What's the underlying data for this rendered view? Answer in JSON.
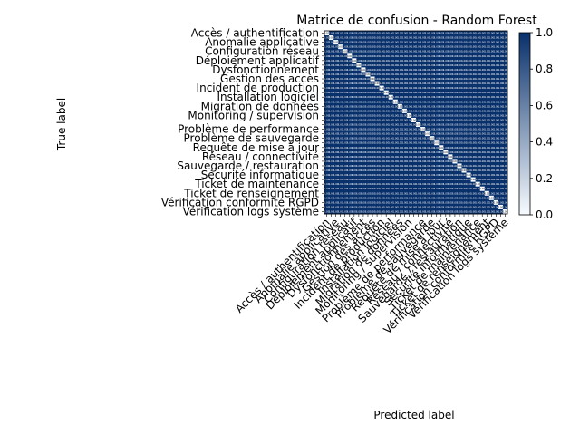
{
  "chart_data": {
    "type": "heatmap",
    "title": "Matrice de confusion - Random Forest",
    "xlabel": "Predicted label",
    "ylabel": "True label",
    "colormap": "Blues",
    "colorbar": {
      "min": 0.0,
      "max": 1.0,
      "ticks": [
        "0.0",
        "0.2",
        "0.4",
        "0.6",
        "0.8",
        "1.0"
      ]
    },
    "diagonal_value": 0.0,
    "off_diagonal_value": 1.0,
    "categories_visible": [
      "Accès / authentification",
      "Anomalie applicative",
      "Configuration réseau",
      "Déploiement applicatif",
      "Dysfonctionnement",
      "Gestion des accès",
      "Incident de production",
      "Installation logiciel",
      "Migration de données",
      "Monitoring / supervision",
      "Problème de performance",
      "Problème de sauvegarde",
      "Requête de mise à jour",
      "Réseau / connectivité",
      "Sauvegarde / restauration",
      "Sécurité informatique",
      "Ticket de maintenance",
      "Ticket de renseignement",
      "Vérification conformité RGPD",
      "Vérification logs système"
    ],
    "category_count": 40
  }
}
